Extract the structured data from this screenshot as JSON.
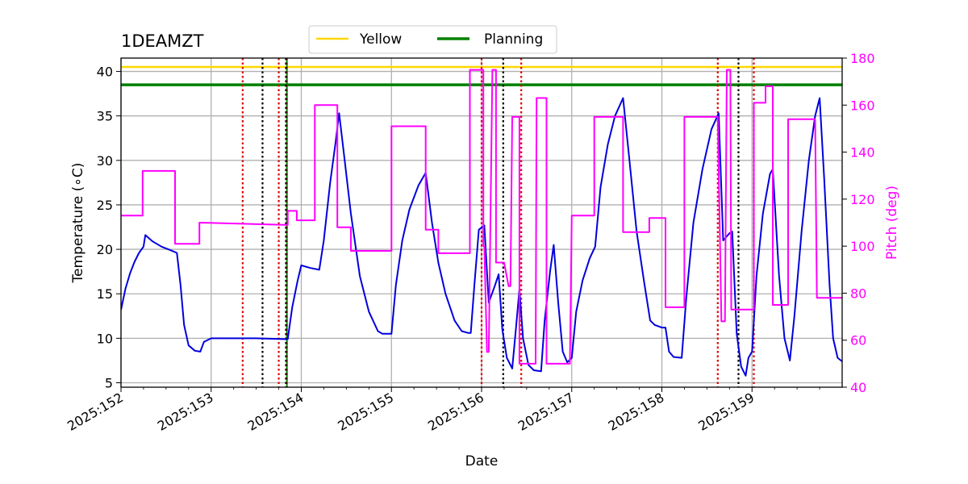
{
  "chart_data": {
    "type": "line",
    "title": "1DEAMZT",
    "xlabel": "Date",
    "ylabel": "Temperature (∘C)",
    "y2label": "Pitch (deg)",
    "xlim": [
      152.0,
      160.0
    ],
    "ylim": [
      4.5,
      41.5
    ],
    "y2lim": [
      40,
      180
    ],
    "x_ticks": [
      152,
      153,
      154,
      155,
      156,
      157,
      158,
      159
    ],
    "x_tick_labels": [
      "2025:152",
      "2025:153",
      "2025:154",
      "2025:155",
      "2025:156",
      "2025:157",
      "2025:158",
      "2025:159"
    ],
    "y_ticks": [
      5,
      10,
      15,
      20,
      25,
      30,
      35,
      40
    ],
    "y2_ticks": [
      40,
      60,
      80,
      100,
      120,
      140,
      160,
      180
    ],
    "grid": true,
    "legend_position": "top-center",
    "colors": {
      "temperature": "#0000dd",
      "pitch": "#ff00ff",
      "yellow": "#ffd700",
      "planning": "#008000",
      "red_marker": "#dd0000",
      "black_marker": "#000000",
      "y2_axis": "#ff00ff"
    },
    "legend": [
      {
        "label": "Yellow",
        "color": "#ffd700"
      },
      {
        "label": "Planning",
        "color": "#008000"
      }
    ],
    "limits": [
      {
        "name": "Yellow",
        "value": 40.5
      },
      {
        "name": "Planning",
        "value": 38.5
      }
    ],
    "red_markers": [
      153.35,
      153.75,
      153.84,
      156.0,
      156.44,
      158.62,
      159.02
    ],
    "black_markers": [
      153.57,
      153.83,
      156.24,
      158.85
    ],
    "green_marker": 153.84,
    "series": [
      {
        "axis": "left",
        "points": [
          [
            152.0,
            13.2
          ],
          [
            152.05,
            15.6
          ],
          [
            152.1,
            17.3
          ],
          [
            152.15,
            18.6
          ],
          [
            152.2,
            19.6
          ],
          [
            152.25,
            20.3
          ],
          [
            152.27,
            21.6
          ],
          [
            152.35,
            20.9
          ],
          [
            152.45,
            20.3
          ],
          [
            152.55,
            19.9
          ],
          [
            152.62,
            19.6
          ],
          [
            152.66,
            16.0
          ],
          [
            152.7,
            11.5
          ],
          [
            152.75,
            9.2
          ],
          [
            152.82,
            8.6
          ],
          [
            152.88,
            8.5
          ],
          [
            152.92,
            9.6
          ],
          [
            153.0,
            10.0
          ],
          [
            153.5,
            10.0
          ],
          [
            153.85,
            9.9
          ],
          [
            153.9,
            13.5
          ],
          [
            153.96,
            16.5
          ],
          [
            154.0,
            18.2
          ],
          [
            154.1,
            17.9
          ],
          [
            154.2,
            17.7
          ],
          [
            154.25,
            21.0
          ],
          [
            154.32,
            27.5
          ],
          [
            154.38,
            32.0
          ],
          [
            154.42,
            35.3
          ],
          [
            154.47,
            31.0
          ],
          [
            154.55,
            24.0
          ],
          [
            154.65,
            17.0
          ],
          [
            154.75,
            13.0
          ],
          [
            154.85,
            10.8
          ],
          [
            154.9,
            10.5
          ],
          [
            155.0,
            10.5
          ],
          [
            155.05,
            16.0
          ],
          [
            155.12,
            21.0
          ],
          [
            155.2,
            24.5
          ],
          [
            155.3,
            27.2
          ],
          [
            155.38,
            28.6
          ],
          [
            155.45,
            23.0
          ],
          [
            155.52,
            18.5
          ],
          [
            155.6,
            15.0
          ],
          [
            155.7,
            12.0
          ],
          [
            155.78,
            10.8
          ],
          [
            155.85,
            10.6
          ],
          [
            155.88,
            10.6
          ],
          [
            155.92,
            16.0
          ],
          [
            155.97,
            22.2
          ],
          [
            156.03,
            22.7
          ],
          [
            156.08,
            14.0
          ],
          [
            156.15,
            16.0
          ],
          [
            156.19,
            17.2
          ],
          [
            156.23,
            11.0
          ],
          [
            156.28,
            7.8
          ],
          [
            156.34,
            6.6
          ],
          [
            156.38,
            11.0
          ],
          [
            156.42,
            15.5
          ],
          [
            156.46,
            10.0
          ],
          [
            156.52,
            7.0
          ],
          [
            156.58,
            6.4
          ],
          [
            156.66,
            6.3
          ],
          [
            156.7,
            12.0
          ],
          [
            156.76,
            17.5
          ],
          [
            156.8,
            20.5
          ],
          [
            156.85,
            14.0
          ],
          [
            156.9,
            8.5
          ],
          [
            156.95,
            7.3
          ],
          [
            157.0,
            7.8
          ],
          [
            157.05,
            13.0
          ],
          [
            157.12,
            16.5
          ],
          [
            157.2,
            19.0
          ],
          [
            157.26,
            20.3
          ],
          [
            157.32,
            27.0
          ],
          [
            157.4,
            31.8
          ],
          [
            157.48,
            35.0
          ],
          [
            157.57,
            37.0
          ],
          [
            157.63,
            31.0
          ],
          [
            157.72,
            22.0
          ],
          [
            157.8,
            16.5
          ],
          [
            157.87,
            12.0
          ],
          [
            157.92,
            11.5
          ],
          [
            158.0,
            11.2
          ],
          [
            158.04,
            11.2
          ],
          [
            158.08,
            8.5
          ],
          [
            158.13,
            7.9
          ],
          [
            158.22,
            7.8
          ],
          [
            158.27,
            14.5
          ],
          [
            158.35,
            23.0
          ],
          [
            158.45,
            29.0
          ],
          [
            158.55,
            33.5
          ],
          [
            158.63,
            35.3
          ],
          [
            158.68,
            21.0
          ],
          [
            158.75,
            21.8
          ],
          [
            158.78,
            22.0
          ],
          [
            158.83,
            10.5
          ],
          [
            158.88,
            6.8
          ],
          [
            158.93,
            5.8
          ],
          [
            158.96,
            7.8
          ],
          [
            159.0,
            8.5
          ],
          [
            159.05,
            17.0
          ],
          [
            159.12,
            24.0
          ],
          [
            159.2,
            28.5
          ],
          [
            159.23,
            29.0
          ],
          [
            159.3,
            17.0
          ],
          [
            159.36,
            10.0
          ],
          [
            159.42,
            7.5
          ],
          [
            159.47,
            12.5
          ],
          [
            159.55,
            22.0
          ],
          [
            159.63,
            30.0
          ],
          [
            159.7,
            35.0
          ],
          [
            159.75,
            37.0
          ],
          [
            159.8,
            28.0
          ],
          [
            159.86,
            16.0
          ],
          [
            159.9,
            10.0
          ],
          [
            159.95,
            7.8
          ],
          [
            160.0,
            7.4
          ]
        ]
      },
      {
        "axis": "right",
        "points": [
          [
            152.0,
            113
          ],
          [
            152.24,
            113
          ],
          [
            152.24,
            132
          ],
          [
            152.6,
            132
          ],
          [
            152.6,
            101
          ],
          [
            152.87,
            101
          ],
          [
            152.87,
            110
          ],
          [
            153.85,
            109
          ],
          [
            153.85,
            115
          ],
          [
            153.95,
            115
          ],
          [
            153.95,
            111
          ],
          [
            154.15,
            111
          ],
          [
            154.15,
            160
          ],
          [
            154.4,
            160
          ],
          [
            154.4,
            108
          ],
          [
            154.55,
            108
          ],
          [
            154.55,
            98
          ],
          [
            155.0,
            98
          ],
          [
            155.0,
            151
          ],
          [
            155.38,
            151
          ],
          [
            155.38,
            107
          ],
          [
            155.52,
            107
          ],
          [
            155.52,
            97
          ],
          [
            155.87,
            97
          ],
          [
            155.87,
            175
          ],
          [
            156.02,
            175
          ],
          [
            156.02,
            100
          ],
          [
            156.03,
            100
          ],
          [
            156.06,
            55
          ],
          [
            156.08,
            55
          ],
          [
            156.12,
            175
          ],
          [
            156.16,
            175
          ],
          [
            156.16,
            93
          ],
          [
            156.25,
            93
          ],
          [
            156.3,
            83
          ],
          [
            156.32,
            83
          ],
          [
            156.34,
            155
          ],
          [
            156.42,
            155
          ],
          [
            156.42,
            50
          ],
          [
            156.6,
            50
          ],
          [
            156.61,
            163
          ],
          [
            156.72,
            163
          ],
          [
            156.72,
            50
          ],
          [
            156.98,
            50
          ],
          [
            157.0,
            113
          ],
          [
            157.25,
            113
          ],
          [
            157.25,
            155
          ],
          [
            157.57,
            155
          ],
          [
            157.57,
            106
          ],
          [
            157.86,
            106
          ],
          [
            157.86,
            112
          ],
          [
            158.04,
            112
          ],
          [
            158.04,
            74
          ],
          [
            158.25,
            74
          ],
          [
            158.25,
            155
          ],
          [
            158.62,
            155
          ],
          [
            158.66,
            68
          ],
          [
            158.7,
            68
          ],
          [
            158.72,
            175
          ],
          [
            158.76,
            175
          ],
          [
            158.77,
            73
          ],
          [
            159.02,
            73
          ],
          [
            159.02,
            161
          ],
          [
            159.15,
            161
          ],
          [
            159.15,
            168
          ],
          [
            159.23,
            168
          ],
          [
            159.23,
            75
          ],
          [
            159.4,
            75
          ],
          [
            159.4,
            154
          ],
          [
            159.7,
            154
          ],
          [
            159.72,
            78
          ],
          [
            160.0,
            78
          ]
        ]
      }
    ]
  }
}
